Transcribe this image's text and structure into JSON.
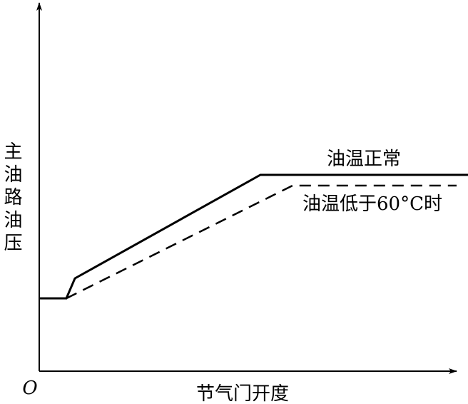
{
  "axes": {
    "y_label": "主油路油压",
    "x_label": "节气门开度",
    "origin": "O"
  },
  "curves": [
    {
      "label": "油温正常"
    },
    {
      "label": "油温低于60°C时"
    }
  ]
}
